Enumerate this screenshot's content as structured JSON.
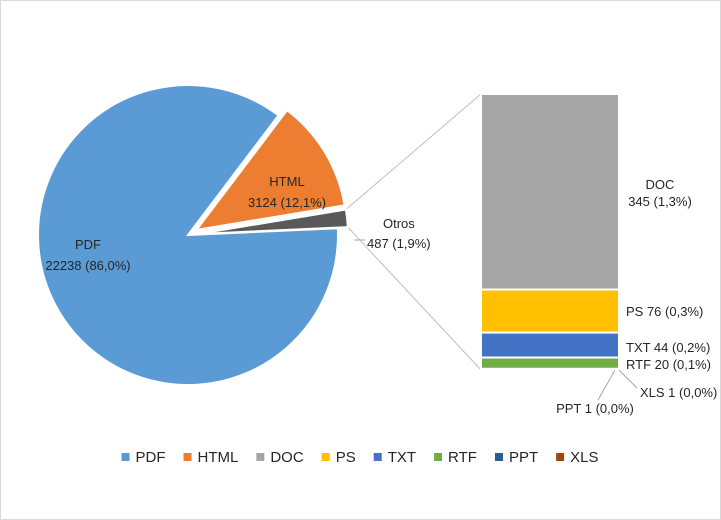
{
  "chart_data": {
    "type": "bar-of-pie",
    "pie": {
      "slices": [
        {
          "key": "pdf",
          "label": "PDF",
          "value": 22238,
          "percent_text": "86,0%",
          "color": "#5b9bd5",
          "exploded": false
        },
        {
          "key": "html",
          "label": "HTML",
          "value": 3124,
          "percent_text": "12,1%",
          "color": "#ed7d31",
          "exploded": true
        },
        {
          "key": "otros",
          "label": "Otros",
          "value": 487,
          "percent_text": "1,9%",
          "color": "#595959",
          "exploded": true
        }
      ]
    },
    "bar": {
      "segments": [
        {
          "key": "doc",
          "label": "DOC",
          "value": 345,
          "percent_text": "1,3%",
          "color": "#a5a5a5"
        },
        {
          "key": "ps",
          "label": "PS",
          "value": 76,
          "percent_text": "0,3%",
          "color": "#ffc000"
        },
        {
          "key": "txt",
          "label": "TXT",
          "value": 44,
          "percent_text": "0,2%",
          "color": "#4472c4"
        },
        {
          "key": "rtf",
          "label": "RTF",
          "value": 20,
          "percent_text": "0,1%",
          "color": "#70ad47"
        },
        {
          "key": "ppt",
          "label": "PPT",
          "value": 1,
          "percent_text": "0,0%",
          "color": "#255e91"
        },
        {
          "key": "xls",
          "label": "XLS",
          "value": 1,
          "percent_text": "0,0%",
          "color": "#9e480e"
        }
      ]
    },
    "legend": {
      "position": "bottom",
      "items": [
        {
          "label": "PDF",
          "color": "#5b9bd5"
        },
        {
          "label": "HTML",
          "color": "#ed7d31"
        },
        {
          "label": "DOC",
          "color": "#a5a5a5"
        },
        {
          "label": "PS",
          "color": "#ffc000"
        },
        {
          "label": "TXT",
          "color": "#4472c4"
        },
        {
          "label": "RTF",
          "color": "#70ad47"
        },
        {
          "label": "PPT",
          "color": "#255e91"
        },
        {
          "label": "XLS",
          "color": "#9e480e"
        }
      ]
    }
  }
}
